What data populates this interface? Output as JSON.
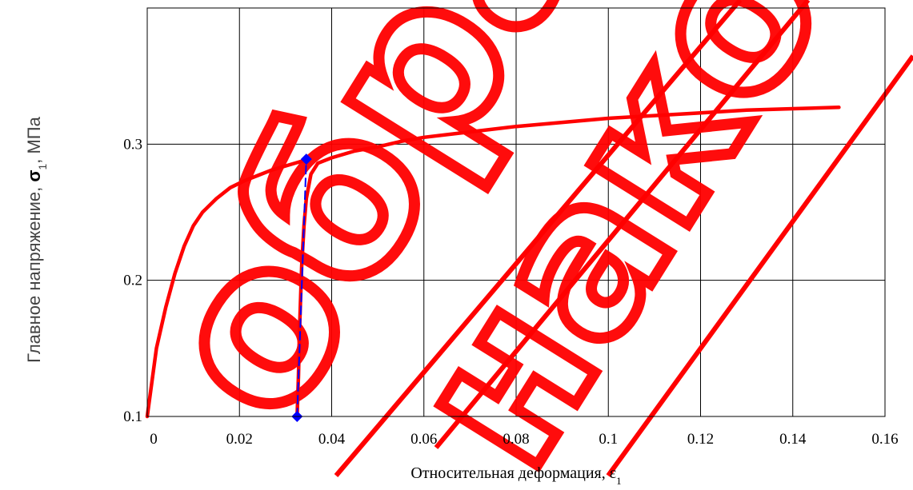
{
  "chart_data": {
    "type": "line",
    "title": "",
    "xlabel": "Относительная деформация, ε",
    "xlabel_subscript": "1",
    "ylabel_prefix": "Главное напряжение, ",
    "ylabel_symbol": "σ",
    "ylabel_subscript": "1",
    "ylabel_suffix": ", МПа",
    "xlim": [
      0,
      0.16
    ],
    "ylim": [
      0.1,
      0.4
    ],
    "xticks": [
      0,
      0.02,
      0.04,
      0.06,
      0.08,
      0.1,
      0.12,
      0.14,
      0.16
    ],
    "xtick_labels": [
      "0",
      "0.02",
      "0.04",
      "0.06",
      "0.08",
      "0.1",
      "0.12",
      "0.14",
      "0.16"
    ],
    "yticks": [
      0.1,
      0.2,
      0.3
    ],
    "ytick_labels": [
      "0.1",
      "0.2",
      "0.3"
    ],
    "grid": true,
    "legend": "none",
    "series": [
      {
        "color": "#ff0000",
        "points": [
          [
            0,
            0.1
          ],
          [
            0.002,
            0.15
          ],
          [
            0.004,
            0.18
          ],
          [
            0.006,
            0.205
          ],
          [
            0.008,
            0.225
          ],
          [
            0.01,
            0.24
          ],
          [
            0.012,
            0.25
          ],
          [
            0.015,
            0.26
          ],
          [
            0.018,
            0.268
          ],
          [
            0.021,
            0.273
          ],
          [
            0.024,
            0.277
          ],
          [
            0.027,
            0.281
          ],
          [
            0.03,
            0.284
          ],
          [
            0.033,
            0.287
          ],
          [
            0.034,
            0.288
          ]
        ]
      },
      {
        "color": "#ff0000",
        "points": [
          [
            0.0325,
            0.1
          ],
          [
            0.0328,
            0.13
          ],
          [
            0.0331,
            0.17
          ],
          [
            0.0335,
            0.21
          ],
          [
            0.034,
            0.24
          ],
          [
            0.0345,
            0.26
          ],
          [
            0.0355,
            0.278
          ],
          [
            0.037,
            0.286
          ],
          [
            0.04,
            0.29
          ],
          [
            0.045,
            0.295
          ],
          [
            0.05,
            0.298
          ],
          [
            0.055,
            0.302
          ],
          [
            0.06,
            0.305
          ],
          [
            0.07,
            0.309
          ],
          [
            0.08,
            0.313
          ],
          [
            0.09,
            0.316
          ],
          [
            0.1,
            0.319
          ],
          [
            0.11,
            0.321
          ],
          [
            0.12,
            0.323
          ],
          [
            0.13,
            0.325
          ],
          [
            0.14,
            0.326
          ],
          [
            0.15,
            0.327
          ]
        ]
      },
      {
        "color": "#0000ff",
        "dashed": true,
        "marker": "diamond",
        "points": [
          [
            0.0325,
            0.1
          ],
          [
            0.0345,
            0.289
          ]
        ]
      }
    ],
    "watermark": {
      "color": "#ff0000",
      "words": [
        "образец",
        "для",
        "ознакомления"
      ]
    }
  }
}
